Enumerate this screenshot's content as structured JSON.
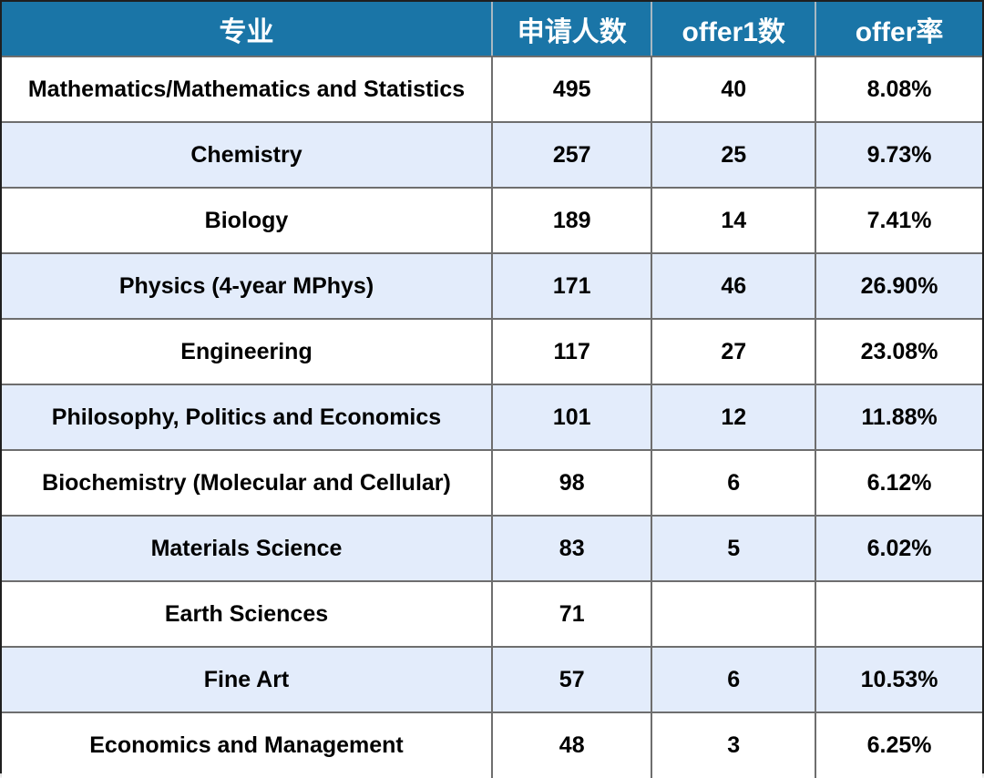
{
  "chart_data": {
    "type": "table",
    "title": "",
    "columns": [
      "专业",
      "申请人数",
      "offer1数",
      "offer率"
    ],
    "rows": [
      {
        "major": "Mathematics/Mathematics and Statistics",
        "applicants": "495",
        "offers": "40",
        "offer_rate": "8.08%"
      },
      {
        "major": "Chemistry",
        "applicants": "257",
        "offers": "25",
        "offer_rate": "9.73%"
      },
      {
        "major": "Biology",
        "applicants": "189",
        "offers": "14",
        "offer_rate": "7.41%"
      },
      {
        "major": "Physics (4-year MPhys)",
        "applicants": "171",
        "offers": "46",
        "offer_rate": "26.90%"
      },
      {
        "major": "Engineering",
        "applicants": "117",
        "offers": "27",
        "offer_rate": "23.08%"
      },
      {
        "major": "Philosophy, Politics and Economics",
        "applicants": "101",
        "offers": "12",
        "offer_rate": "11.88%"
      },
      {
        "major": "Biochemistry (Molecular and Cellular)",
        "applicants": "98",
        "offers": "6",
        "offer_rate": "6.12%"
      },
      {
        "major": "Materials Science",
        "applicants": "83",
        "offers": "5",
        "offer_rate": "6.02%"
      },
      {
        "major": "Earth Sciences",
        "applicants": "71",
        "offers": "",
        "offer_rate": ""
      },
      {
        "major": "Fine Art",
        "applicants": "57",
        "offers": "6",
        "offer_rate": "10.53%"
      },
      {
        "major": "Economics and Management",
        "applicants": "48",
        "offers": "3",
        "offer_rate": "6.25%"
      }
    ]
  },
  "colors": {
    "header_bg": "#1a75a7",
    "header_text": "#ffffff",
    "row_alt_bg": "#e3ecfb",
    "row_bg": "#ffffff",
    "body_text": "#000000",
    "grid_line": "#6e6e6e",
    "outer_border": "#1f1f1f"
  }
}
